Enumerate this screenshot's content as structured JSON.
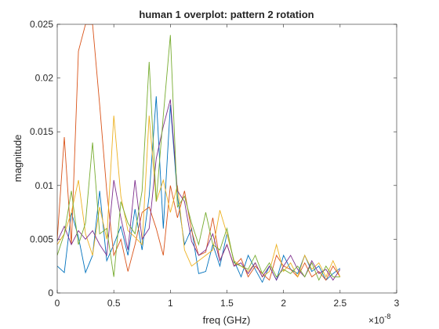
{
  "chart_data": {
    "type": "line",
    "title": "human 1 overplot: pattern 2 rotation",
    "xlabel": "freq (GHz)",
    "ylabel": "magnitude",
    "x_multiplier_base": "×10",
    "x_multiplier_exponent": "-8",
    "x": [
      0,
      0.0625,
      0.125,
      0.1875,
      0.25,
      0.3125,
      0.375,
      0.4375,
      0.5,
      0.5625,
      0.625,
      0.6875,
      0.75,
      0.8125,
      0.875,
      0.9375,
      1.0,
      1.0625,
      1.125,
      1.1875,
      1.25,
      1.3125,
      1.375,
      1.4375,
      1.5,
      1.5625,
      1.625,
      1.6875,
      1.75,
      1.8125,
      1.875,
      1.9375,
      2.0,
      2.0625,
      2.125,
      2.1875,
      2.25,
      2.3125,
      2.375,
      2.4375,
      2.5
    ],
    "series": [
      {
        "color": "#0072BD",
        "values": [
          0.0025,
          0.0019,
          0.0075,
          0.0052,
          0.0019,
          0.0035,
          0.0095,
          0.003,
          0.0045,
          0.0062,
          0.0035,
          0.0078,
          0.004,
          0.009,
          0.0183,
          0.006,
          0.0175,
          0.009,
          0.0045,
          0.006,
          0.0018,
          0.002,
          0.0045,
          0.0025,
          0.0055,
          0.003,
          0.0015,
          0.0035,
          0.0022,
          0.001,
          0.0025,
          0.0012,
          0.0035,
          0.0022,
          0.0018,
          0.0035,
          0.002,
          0.0025,
          0.0012,
          0.0018,
          0.0023
        ]
      },
      {
        "color": "#D95319",
        "values": [
          0.005,
          0.0145,
          0.0045,
          0.0225,
          0.025,
          0.025,
          0.0175,
          0.0095,
          0.0035,
          0.005,
          0.002,
          0.0045,
          0.0075,
          0.008,
          0.006,
          0.0035,
          0.01,
          0.007,
          0.0095,
          0.0058,
          0.0035,
          0.0038,
          0.007,
          0.003,
          0.0045,
          0.0025,
          0.0032,
          0.0015,
          0.0025,
          0.0018,
          0.0012,
          0.0035,
          0.0025,
          0.0022,
          0.0015,
          0.0028,
          0.0015,
          0.002,
          0.0012,
          0.0025,
          0.0015
        ]
      },
      {
        "color": "#EDB120",
        "values": [
          0.0045,
          0.0055,
          0.0075,
          0.0105,
          0.0055,
          0.0035,
          0.008,
          0.005,
          0.0165,
          0.009,
          0.0058,
          0.0052,
          0.0045,
          0.0165,
          0.0085,
          0.0105,
          0.0075,
          0.01,
          0.004,
          0.0025,
          0.003,
          0.0035,
          0.004,
          0.0077,
          0.0055,
          0.003,
          0.0025,
          0.002,
          0.0028,
          0.0015,
          0.002,
          0.0045,
          0.002,
          0.0028,
          0.0015,
          0.0035,
          0.0022,
          0.0028,
          0.0015,
          0.003,
          0.0015
        ]
      },
      {
        "color": "#7E2F8E",
        "values": [
          0.0048,
          0.0062,
          0.0045,
          0.0058,
          0.005,
          0.0058,
          0.0045,
          0.0035,
          0.0105,
          0.007,
          0.004,
          0.0105,
          0.005,
          0.006,
          0.0125,
          0.0155,
          0.018,
          0.0095,
          0.0085,
          0.0048,
          0.0035,
          0.004,
          0.0055,
          0.003,
          0.0045,
          0.0025,
          0.0028,
          0.0018,
          0.0028,
          0.0015,
          0.0025,
          0.0012,
          0.0025,
          0.0035,
          0.0022,
          0.0015,
          0.003,
          0.0018,
          0.0022,
          0.0012,
          0.0022
        ]
      },
      {
        "color": "#77AC30",
        "values": [
          0.0035,
          0.0055,
          0.0095,
          0.0045,
          0.0065,
          0.014,
          0.0055,
          0.006,
          0.0015,
          0.0085,
          0.0065,
          0.0055,
          0.0095,
          0.0215,
          0.0085,
          0.0165,
          0.024,
          0.008,
          0.009,
          0.0065,
          0.0045,
          0.0075,
          0.0045,
          0.004,
          0.006,
          0.0028,
          0.0025,
          0.0022,
          0.0035,
          0.0018,
          0.0028,
          0.0015,
          0.0022,
          0.0018,
          0.0025,
          0.0015,
          0.0028,
          0.0012,
          0.0025,
          0.0015,
          0.0015
        ]
      }
    ],
    "xlim": [
      0,
      3
    ],
    "xticks": [
      0,
      0.5,
      1,
      1.5,
      2,
      2.5,
      3
    ],
    "ylim": [
      0,
      0.025
    ],
    "yticks": [
      0,
      0.005,
      0.01,
      0.015,
      0.02,
      0.025
    ],
    "grid": false
  }
}
